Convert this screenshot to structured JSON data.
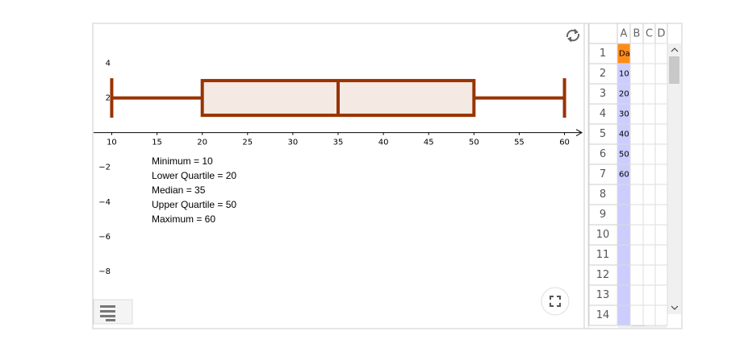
{
  "chart_data": {
    "type": "box",
    "min": 10,
    "q1": 20,
    "median": 35,
    "q3": 50,
    "max": 60,
    "y_offset": 2,
    "y_scale": 1,
    "color": "#993300",
    "fill": "#f5e9e4",
    "xlim": [
      8,
      62
    ],
    "ylim": [
      -11.3,
      6.3
    ],
    "xticks": [
      10,
      15,
      20,
      25,
      30,
      35,
      40,
      45,
      50,
      55,
      60
    ],
    "yticks": [
      {
        "value": -8,
        "label": "−8"
      },
      {
        "value": -6,
        "label": "−6"
      },
      {
        "value": -4,
        "label": "−4"
      },
      {
        "value": -2,
        "label": "−2"
      },
      2,
      4
    ],
    "annotations": [
      "Minimum = 10",
      "Lower Quartile = 20",
      "Median = 35",
      "Upper Quartile = 50",
      "Maximum = 60"
    ]
  },
  "spreadsheet": {
    "columns": [
      "A",
      "B",
      "C",
      "D"
    ],
    "rows": [
      "1",
      "2",
      "3",
      "4",
      "5",
      "6",
      "7",
      "8",
      "9",
      "10",
      "11",
      "12",
      "13",
      "14"
    ],
    "cells_a": [
      "Da",
      "10",
      "20",
      "30",
      "40",
      "50",
      "60"
    ]
  }
}
